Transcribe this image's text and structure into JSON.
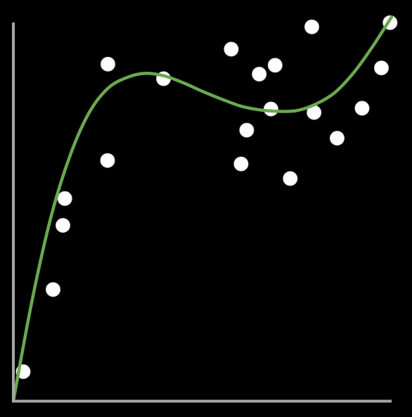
{
  "chart_data": {
    "type": "scatter",
    "title": "",
    "xlabel": "",
    "ylabel": "",
    "xlim": [
      0,
      100
    ],
    "ylim": [
      0,
      100
    ],
    "grid": false,
    "legend": "none",
    "colors": {
      "background": "#000000",
      "axis": "#a6a6a6",
      "point_fill": "#ffffff",
      "point_stroke": "#d9d9d9",
      "fit_line": "#6aa84f"
    },
    "series": [
      {
        "kind": "points",
        "x": [
          2.6,
          10.5,
          13.1,
          13.6,
          24.9,
          25.0,
          39.7,
          57.6,
          60.2,
          61.7,
          65.0,
          68.1,
          69.2,
          73.2,
          78.9,
          79.5,
          85.6,
          92.2,
          97.3,
          99.6
        ],
        "y": [
          7.6,
          29.0,
          45.7,
          52.7,
          62.6,
          87.7,
          83.9,
          91.6,
          61.7,
          70.5,
          85.1,
          76.0,
          87.4,
          57.9,
          97.4,
          75.1,
          68.4,
          76.2,
          86.7,
          98.5
        ]
      },
      {
        "kind": "fit_curve",
        "x": [
          0,
          5,
          10,
          15,
          20,
          25,
          30,
          35,
          40,
          45,
          50,
          55,
          60,
          65,
          70,
          75,
          80,
          85,
          90,
          95,
          100
        ],
        "y": [
          0.0,
          26.4,
          48.1,
          63.9,
          75.0,
          81.4,
          84.2,
          85.3,
          84.6,
          82.8,
          80.6,
          78.6,
          76.8,
          75.8,
          75.4,
          75.6,
          77.3,
          80.3,
          85.5,
          92.3,
          100.0
        ]
      }
    ]
  }
}
